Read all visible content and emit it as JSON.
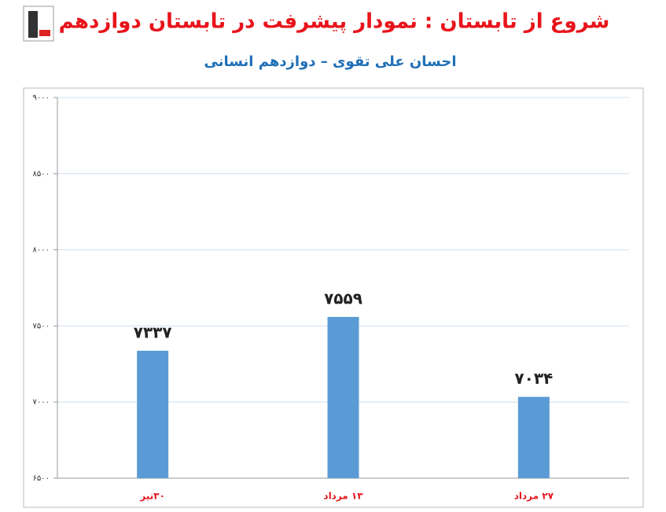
{
  "chart_data": {
    "type": "bar",
    "title": "شروع از تابستان : نمودار پیشرفت در تابستان دوازدهم",
    "subtitle": "احسان علی تقوی – دوازدهم انسانی",
    "categories": [
      "۳۰تیر",
      "۱۳ مرداد",
      "۲۷ مرداد"
    ],
    "values": [
      7337,
      7559,
      7034
    ],
    "value_labels": [
      "۷۳۳۷",
      "۷۵۵۹",
      "۷۰۳۴"
    ],
    "color": "#5b9bd5",
    "ylim": [
      6500,
      9000
    ],
    "yticks": [
      {
        "value": 6500,
        "label": "۶۵۰۰"
      },
      {
        "value": 7000,
        "label": "۷۰۰۰"
      },
      {
        "value": 7500,
        "label": "۷۵۰۰"
      },
      {
        "value": 8000,
        "label": "۸۰۰۰"
      },
      {
        "value": 8500,
        "label": "۸۵۰۰"
      },
      {
        "value": 9000,
        "label": "۹۰۰۰"
      }
    ],
    "grid": true
  }
}
